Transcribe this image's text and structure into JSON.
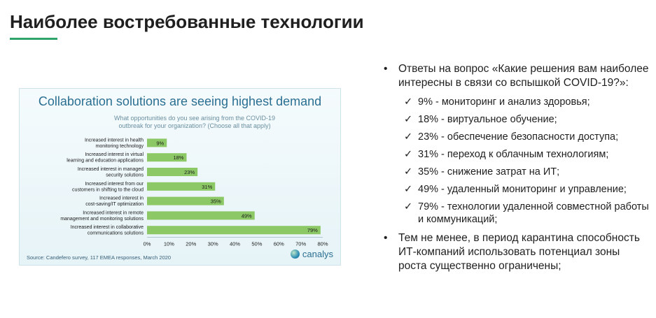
{
  "slide": {
    "title": "Наиболее востребованные технологии"
  },
  "chart_data": {
    "type": "bar",
    "title": "Collaboration solutions are seeing highest demand",
    "subtitle": "What opportunities do you see arising from the COVID-19 outbreak for your organization? (Choose all that apply)",
    "categories": [
      "Increased interest in health monitoring technology",
      "Increased interest in virtual learning and education applications",
      "Increased interest in managed security solutions",
      "Increased interest from our customers in shifting to the cloud",
      "Increased interest in cost-saving/IT optimization",
      "Increased interest in remote management and monitoring solutions",
      "Increased interest in collaborative communications solutions"
    ],
    "category_lines": [
      [
        "Increased interest in health",
        "monitoring technology"
      ],
      [
        "Increased interest in virtual",
        "learning and education applications"
      ],
      [
        "Increased interest in managed",
        "security solutions"
      ],
      [
        "Increased interest from our",
        "customers in shifting to the cloud"
      ],
      [
        "Increased interest in",
        "cost-saving/IT optimization"
      ],
      [
        "Increased interest in remote",
        "management and monitoring solutions"
      ],
      [
        "Increased interest in collaborative",
        "communications solutions"
      ]
    ],
    "values": [
      9,
      18,
      23,
      31,
      35,
      49,
      79
    ],
    "value_labels": [
      "9%",
      "18%",
      "23%",
      "31%",
      "35%",
      "49%",
      "79%"
    ],
    "xlim": [
      0,
      80
    ],
    "x_ticks": [
      "0%",
      "10%",
      "20%",
      "30%",
      "40%",
      "50%",
      "60%",
      "70%",
      "80%"
    ],
    "orientation": "horizontal",
    "bar_color": "#8cc865",
    "source": "Source: Candefero survey, 117 EMEA responses, March 2020",
    "brand": "canalys"
  },
  "bullets": {
    "dot": "•",
    "check": "✓",
    "q_text": "Ответы на вопрос «Какие решения вам наиболее интересны в связи со вспышкой COVID-19?»:",
    "answers": [
      "9% - мониторинг и анализ здоровья;",
      "18% - виртуальное обучение;",
      "23% - обеспечение безопасности доступа;",
      "31% - переход к облачным технологиям;",
      "35% - снижение затрат на ИТ;",
      "49% - удаленный мониторинг и управление;",
      "79% - технологии удаленной совместной работы и коммуникаций;"
    ],
    "conclusion": "Тем не менее, в период карантина способность ИТ-компаний использовать потенциал зоны роста существенно ограничены;"
  }
}
